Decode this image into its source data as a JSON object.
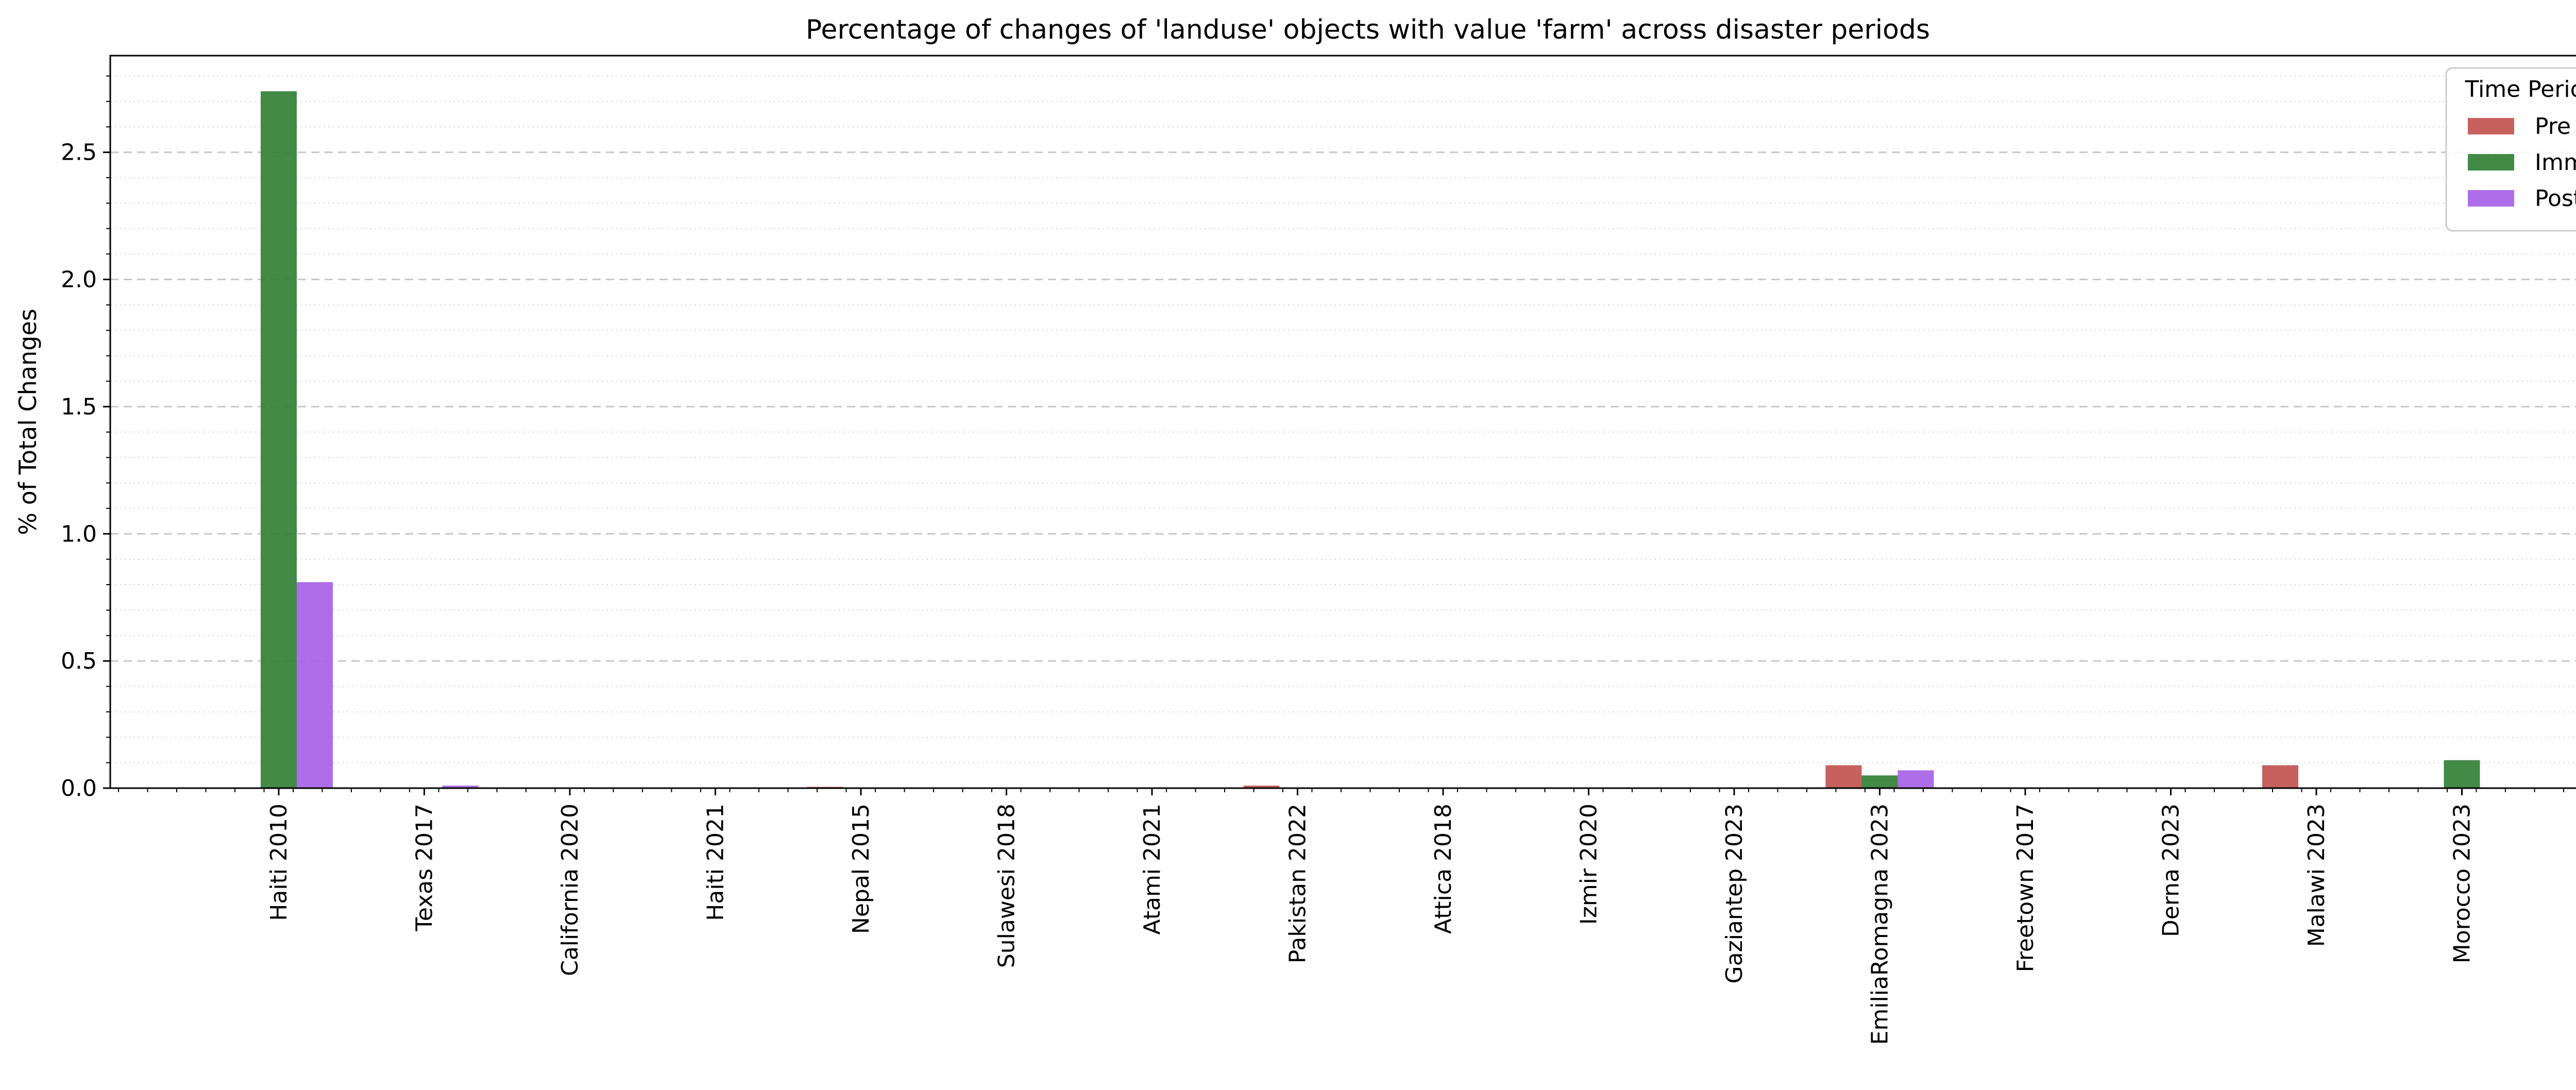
{
  "chart_data": {
    "type": "bar",
    "title": "Percentage of changes of 'landuse' objects with value 'farm' across disaster periods",
    "xlabel": "",
    "ylabel": "% of Total Changes",
    "ylim": [
      0,
      2.88
    ],
    "yticks": [
      0.0,
      0.5,
      1.0,
      1.5,
      2.0,
      2.5
    ],
    "ytick_labels": [
      "0.0",
      "0.5",
      "1.0",
      "1.5",
      "2.0",
      "2.5"
    ],
    "grid": "major dashed, minor dotted (horizontal)",
    "legend": {
      "title": "Time Period",
      "placement": "top-right"
    },
    "categories": [
      "Haiti 2010",
      "Texas 2017",
      "California 2020",
      "Haiti 2021",
      "Nepal 2015",
      "Sulawesi 2018",
      "Atami 2021",
      "Pakistan 2022",
      "Attica 2018",
      "Izmir 2020",
      "Gaziantep 2023",
      "EmiliaRomagna 2023",
      "Freetown 2017",
      "Derna 2023",
      "Malawi 2023",
      "Morocco 2023"
    ],
    "series": [
      {
        "name": "Pre",
        "color": "#c0504d",
        "values": [
          0,
          0,
          0,
          0,
          0.005,
          0,
          0,
          0.01,
          0,
          0,
          0,
          0.09,
          0,
          0,
          0.09,
          0
        ]
      },
      {
        "name": "Imm",
        "color": "#2e7d32",
        "values": [
          2.74,
          0,
          0,
          0,
          0,
          0,
          0,
          0,
          0,
          0,
          0,
          0.05,
          0,
          0,
          0,
          0.11
        ]
      },
      {
        "name": "Post",
        "color": "#a55ee8",
        "values": [
          0.81,
          0.01,
          0,
          0,
          0,
          0,
          0,
          0,
          0,
          0,
          0,
          0.07,
          0,
          0,
          0,
          0
        ]
      }
    ]
  }
}
